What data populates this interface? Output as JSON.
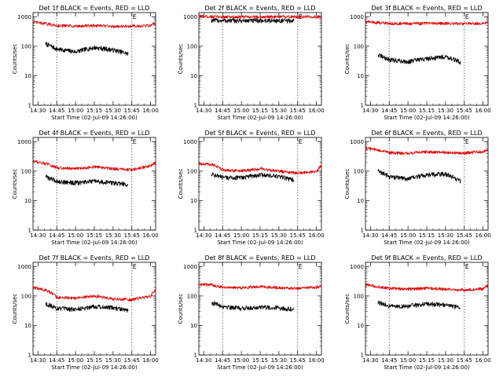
{
  "figure": {
    "ylabel": "Counts/sec",
    "xlabel": "Start Time (02-Jul-09 14:26:00)",
    "x_ticks": [
      "14:30",
      "14:45",
      "15:00",
      "15:15",
      "15:30",
      "15:45",
      "16:00"
    ],
    "y_ticks": [
      "1",
      "10",
      "100",
      "1000"
    ],
    "marker_label": "E",
    "colors": {
      "events": "#000000",
      "lld": "#dd0000"
    }
  },
  "chart_data": [
    {
      "type": "line",
      "title": "Det 1f BLACK = Events, RED = LLD",
      "xlabel": "Start Time (02-Jul-09 14:26:00)",
      "ylabel": "Counts/sec",
      "yscale": "log",
      "ylim": [
        1,
        1000
      ],
      "xlim": [
        "14:26",
        "16:04"
      ],
      "series": [
        {
          "name": "Events",
          "color": "#000000",
          "x": [
            "14:36",
            "14:45",
            "15:00",
            "15:15",
            "15:30",
            "15:42"
          ],
          "values": [
            120,
            80,
            65,
            90,
            75,
            55
          ]
        },
        {
          "name": "LLD",
          "color": "#dd0000",
          "x": [
            "14:26",
            "14:36",
            "14:45",
            "15:00",
            "15:15",
            "15:30",
            "15:45",
            "16:00",
            "16:04"
          ],
          "values": [
            650,
            580,
            500,
            480,
            500,
            470,
            480,
            500,
            620
          ]
        }
      ],
      "vlines": [
        "14:45",
        "15:45"
      ],
      "annotations": [
        "E"
      ]
    },
    {
      "type": "line",
      "title": "Det 2f BLACK = Events, RED = LLD",
      "xlabel": "Start Time (02-Jul-09 14:26:00)",
      "ylabel": "Counts/sec",
      "yscale": "log",
      "ylim": [
        1,
        1000
      ],
      "xlim": [
        "14:26",
        "16:04"
      ],
      "series": [
        {
          "name": "Events",
          "color": "#000000",
          "x": [
            "14:36",
            "14:45",
            "15:00",
            "15:15",
            "15:30",
            "15:42"
          ],
          "values": [
            750,
            740,
            730,
            740,
            730,
            720
          ]
        },
        {
          "name": "LLD",
          "color": "#dd0000",
          "x": [
            "14:26",
            "14:36",
            "14:45",
            "15:00",
            "15:15",
            "15:30",
            "15:45",
            "16:00",
            "16:04"
          ],
          "values": [
            1050,
            1000,
            990,
            980,
            990,
            980,
            990,
            1000,
            1010
          ]
        }
      ],
      "vlines": [
        "14:45",
        "15:45"
      ],
      "annotations": [
        "E"
      ]
    },
    {
      "type": "line",
      "title": "Det 3f BLACK = Events, RED = LLD",
      "xlabel": "Start Time (02-Jul-09 14:26:00)",
      "ylabel": "Counts/sec",
      "yscale": "log",
      "ylim": [
        1,
        1000
      ],
      "xlim": [
        "14:26",
        "16:04"
      ],
      "series": [
        {
          "name": "Events",
          "color": "#000000",
          "x": [
            "14:36",
            "14:45",
            "15:00",
            "15:15",
            "15:30",
            "15:42"
          ],
          "values": [
            50,
            35,
            30,
            38,
            45,
            28
          ]
        },
        {
          "name": "LLD",
          "color": "#dd0000",
          "x": [
            "14:26",
            "14:36",
            "14:45",
            "15:00",
            "15:15",
            "15:30",
            "15:45",
            "16:00",
            "16:04"
          ],
          "values": [
            680,
            630,
            600,
            580,
            600,
            590,
            580,
            590,
            640
          ]
        }
      ],
      "vlines": [
        "14:45",
        "15:45"
      ],
      "annotations": [
        "E"
      ]
    },
    {
      "type": "line",
      "title": "Det 4f BLACK = Events, RED = LLD",
      "xlabel": "Start Time (02-Jul-09 14:26:00)",
      "ylabel": "Counts/sec",
      "yscale": "log",
      "ylim": [
        1,
        1000
      ],
      "xlim": [
        "14:26",
        "16:04"
      ],
      "series": [
        {
          "name": "Events",
          "color": "#000000",
          "x": [
            "14:36",
            "14:45",
            "15:00",
            "15:15",
            "15:30",
            "15:42"
          ],
          "values": [
            65,
            45,
            40,
            45,
            40,
            35
          ]
        },
        {
          "name": "LLD",
          "color": "#dd0000",
          "x": [
            "14:26",
            "14:36",
            "14:45",
            "15:00",
            "15:15",
            "15:30",
            "15:45",
            "16:00",
            "16:04"
          ],
          "values": [
            220,
            180,
            130,
            120,
            140,
            120,
            110,
            150,
            190
          ]
        }
      ],
      "vlines": [
        "14:45",
        "15:45"
      ],
      "annotations": [
        "E"
      ]
    },
    {
      "type": "line",
      "title": "Det 5f BLACK = Events, RED = LLD",
      "xlabel": "Start Time (02-Jul-09 14:26:00)",
      "ylabel": "Counts/sec",
      "yscale": "log",
      "ylim": [
        1,
        1000
      ],
      "xlim": [
        "14:26",
        "16:04"
      ],
      "series": [
        {
          "name": "Events",
          "color": "#000000",
          "x": [
            "14:36",
            "14:45",
            "15:00",
            "15:15",
            "15:30",
            "15:42"
          ],
          "values": [
            80,
            60,
            60,
            75,
            65,
            50
          ]
        },
        {
          "name": "LLD",
          "color": "#dd0000",
          "x": [
            "14:26",
            "14:36",
            "14:45",
            "15:00",
            "15:15",
            "15:30",
            "15:45",
            "16:00",
            "16:04"
          ],
          "values": [
            180,
            170,
            110,
            100,
            120,
            100,
            85,
            95,
            160
          ]
        }
      ],
      "vlines": [
        "14:45",
        "15:45"
      ],
      "annotations": [
        "E"
      ]
    },
    {
      "type": "line",
      "title": "Det 6f BLACK = Events, RED = LLD",
      "xlabel": "Start Time (02-Jul-09 14:26:00)",
      "ylabel": "Counts/sec",
      "yscale": "log",
      "ylim": [
        1,
        1000
      ],
      "xlim": [
        "14:26",
        "16:04"
      ],
      "series": [
        {
          "name": "Events",
          "color": "#000000",
          "x": [
            "14:36",
            "14:45",
            "15:00",
            "15:15",
            "15:30",
            "15:42"
          ],
          "values": [
            100,
            65,
            55,
            75,
            80,
            45
          ]
        },
        {
          "name": "LLD",
          "color": "#dd0000",
          "x": [
            "14:26",
            "14:36",
            "14:45",
            "15:00",
            "15:15",
            "15:30",
            "15:45",
            "16:00",
            "16:04"
          ],
          "values": [
            600,
            520,
            420,
            400,
            450,
            430,
            410,
            460,
            520
          ]
        }
      ],
      "vlines": [
        "14:45",
        "15:45"
      ],
      "annotations": [
        "E"
      ]
    },
    {
      "type": "line",
      "title": "Det 7f BLACK = Events, RED = LLD",
      "xlabel": "Start Time (02-Jul-09 14:26:00)",
      "ylabel": "Counts/sec",
      "yscale": "log",
      "ylim": [
        1,
        1000
      ],
      "xlim": [
        "14:26",
        "16:04"
      ],
      "series": [
        {
          "name": "Events",
          "color": "#000000",
          "x": [
            "14:36",
            "14:45",
            "15:00",
            "15:15",
            "15:30",
            "15:42"
          ],
          "values": [
            55,
            38,
            35,
            45,
            40,
            32
          ]
        },
        {
          "name": "LLD",
          "color": "#dd0000",
          "x": [
            "14:26",
            "14:36",
            "14:45",
            "15:00",
            "15:15",
            "15:30",
            "15:45",
            "16:00",
            "16:04"
          ],
          "values": [
            190,
            160,
            90,
            85,
            100,
            80,
            75,
            100,
            160
          ]
        }
      ],
      "vlines": [
        "14:45",
        "15:45"
      ],
      "annotations": [
        "E"
      ]
    },
    {
      "type": "line",
      "title": "Det 8f BLACK = Events, RED = LLD",
      "xlabel": "Start Time (02-Jul-09 14:26:00)",
      "ylabel": "Counts/sec",
      "yscale": "log",
      "ylim": [
        1,
        1000
      ],
      "xlim": [
        "14:26",
        "16:04"
      ],
      "series": [
        {
          "name": "Events",
          "color": "#000000",
          "x": [
            "14:36",
            "14:45",
            "15:00",
            "15:15",
            "15:30",
            "15:42"
          ],
          "values": [
            60,
            45,
            38,
            42,
            40,
            35
          ]
        },
        {
          "name": "LLD",
          "color": "#dd0000",
          "x": [
            "14:26",
            "14:36",
            "14:45",
            "15:00",
            "15:15",
            "15:30",
            "15:45",
            "16:00",
            "16:04"
          ],
          "values": [
            250,
            240,
            200,
            190,
            210,
            190,
            180,
            195,
            230
          ]
        }
      ],
      "vlines": [
        "14:45",
        "15:45"
      ],
      "annotations": [
        "E"
      ]
    },
    {
      "type": "line",
      "title": "Det 9f BLACK = Events, RED = LLD",
      "xlabel": "Start Time (02-Jul-09 14:26:00)",
      "ylabel": "Counts/sec",
      "yscale": "log",
      "ylim": [
        1,
        1000
      ],
      "xlim": [
        "14:26",
        "16:04"
      ],
      "series": [
        {
          "name": "Events",
          "color": "#000000",
          "x": [
            "14:36",
            "14:45",
            "15:00",
            "15:15",
            "15:30",
            "15:42"
          ],
          "values": [
            60,
            45,
            45,
            55,
            50,
            38
          ]
        },
        {
          "name": "LLD",
          "color": "#dd0000",
          "x": [
            "14:26",
            "14:36",
            "14:45",
            "15:00",
            "15:15",
            "15:30",
            "15:45",
            "16:00",
            "16:04"
          ],
          "values": [
            240,
            210,
            180,
            170,
            185,
            170,
            160,
            175,
            230
          ]
        }
      ],
      "vlines": [
        "14:45",
        "15:45"
      ],
      "annotations": [
        "E"
      ]
    }
  ]
}
